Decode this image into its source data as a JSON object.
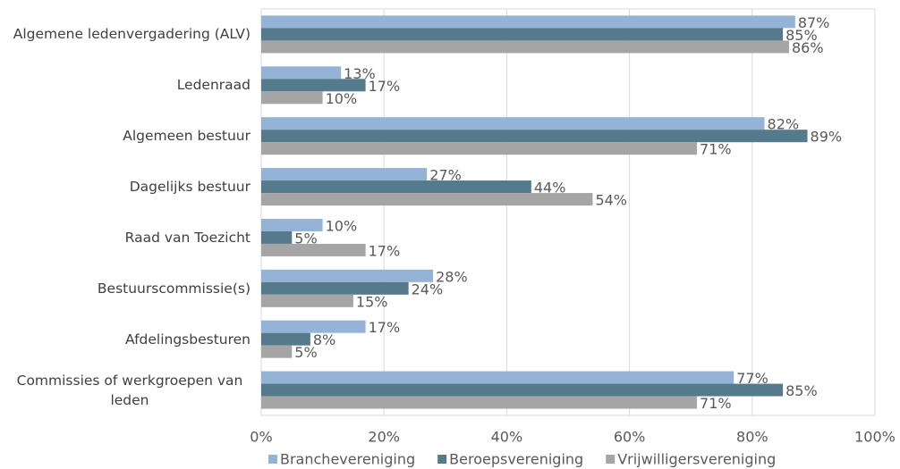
{
  "chart_data": {
    "type": "bar",
    "orientation": "horizontal",
    "categories": [
      "Algemene ledenvergadering (ALV)",
      "Ledenraad",
      "Algemeen bestuur",
      "Dagelijks bestuur",
      "Raad van Toezicht",
      "Bestuurscommissie(s)",
      "Afdelingsbesturen",
      "Commissies of werkgroepen van leden"
    ],
    "series": [
      {
        "name": "Branchevereniging",
        "color": "#95b3d7",
        "values": [
          87,
          13,
          82,
          27,
          10,
          28,
          17,
          77
        ],
        "value_labels": [
          "87%",
          "13%",
          "82%",
          "27%",
          "10%",
          "28%",
          "17%",
          "77%"
        ]
      },
      {
        "name": "Beroepsvereniging",
        "color": "#557a8c",
        "values": [
          85,
          17,
          89,
          44,
          5,
          24,
          8,
          85
        ],
        "value_labels": [
          "85%",
          "17%",
          "89%",
          "44%",
          "5%",
          "24%",
          "8%",
          "85%"
        ]
      },
      {
        "name": "Vrijwilligersvereniging",
        "color": "#a5a5a5",
        "values": [
          86,
          10,
          71,
          54,
          17,
          15,
          5,
          71
        ],
        "value_labels": [
          "86%",
          "10%",
          "71%",
          "54%",
          "17%",
          "15%",
          "5%",
          "71%"
        ]
      }
    ],
    "xlim": [
      0,
      100
    ],
    "xticks": [
      {
        "value": 0,
        "label": "0%"
      },
      {
        "value": 20,
        "label": "20%"
      },
      {
        "value": 40,
        "label": "40%"
      },
      {
        "value": 60,
        "label": "60%"
      },
      {
        "value": 80,
        "label": "80%"
      },
      {
        "value": 100,
        "label": "100%"
      }
    ],
    "grid": true,
    "legend": "bottom"
  }
}
